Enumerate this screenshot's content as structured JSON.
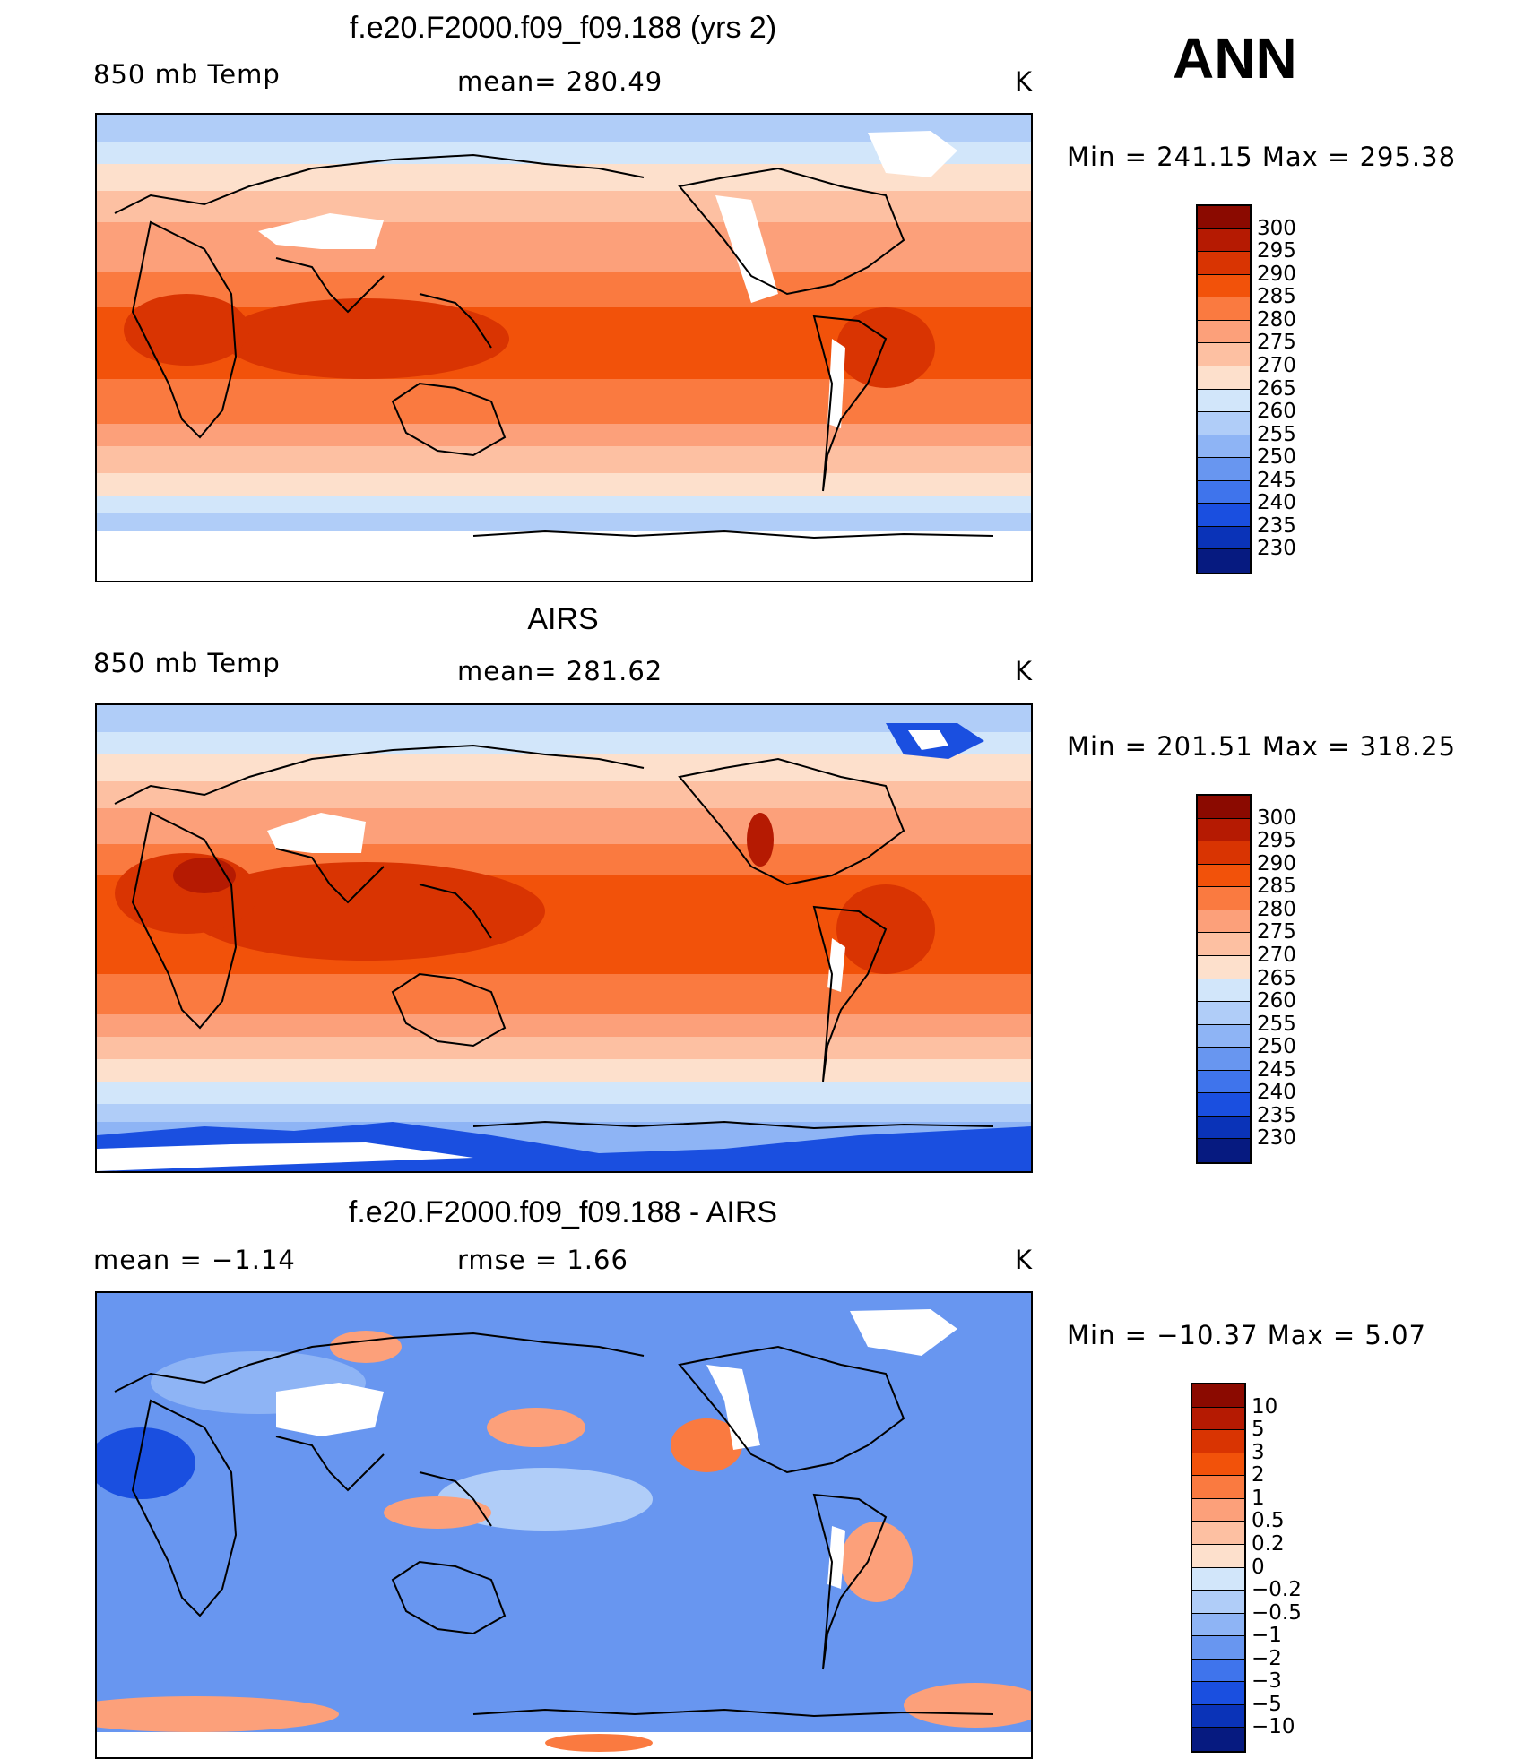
{
  "season": "ANN",
  "panels": [
    {
      "title": "f.e20.F2000.f09_f09.188 (yrs 2)",
      "left_label": "850 mb Temp",
      "center_label": "mean= 280.49",
      "units": "K",
      "min_max": "Min = 241.15 Max = 295.38",
      "kind": "model"
    },
    {
      "title": "AIRS",
      "left_label": "850 mb Temp",
      "center_label": "mean= 281.62",
      "units": "K",
      "min_max": "Min = 201.51 Max = 318.25",
      "kind": "obs"
    },
    {
      "title": "f.e20.F2000.f09_f09.188 - AIRS",
      "left_label": "mean =   −1.14",
      "center_label": "rmse =    1.66",
      "units": "K",
      "min_max": "Min = −10.37 Max =    5.07",
      "kind": "diff"
    }
  ],
  "colorbar_abs": {
    "labels": [
      "300",
      "295",
      "290",
      "285",
      "280",
      "275",
      "270",
      "265",
      "260",
      "255",
      "250",
      "245",
      "240",
      "235",
      "230"
    ],
    "colors": [
      "#8b0a00",
      "#b51a02",
      "#d93402",
      "#f2520a",
      "#fa7a40",
      "#fca07a",
      "#fdc0a2",
      "#fde0cc",
      "#d2e6fa",
      "#b0cdf8",
      "#8eb4f5",
      "#6896f0",
      "#3f74ec",
      "#1a4fe0",
      "#0a33b8",
      "#061a80"
    ]
  },
  "colorbar_diff": {
    "labels": [
      "10",
      "5",
      "3",
      "2",
      "1",
      "0.5",
      "0.2",
      "0",
      "−0.2",
      "−0.5",
      "−1",
      "−2",
      "−3",
      "−5",
      "−10"
    ],
    "colors": [
      "#8b0a00",
      "#b51a02",
      "#d93402",
      "#f2520a",
      "#fa7a40",
      "#fca07a",
      "#fdc0a2",
      "#fde0cc",
      "#d2e6fa",
      "#b0cdf8",
      "#8eb4f5",
      "#6896f0",
      "#3f74ec",
      "#1a4fe0",
      "#0a33b8",
      "#061a80"
    ]
  },
  "chart_data": [
    {
      "type": "heatmap",
      "title": "f.e20.F2000.f09_f09.188 (yrs 2)",
      "variable": "850 mb Temp",
      "units": "K",
      "mean": 280.49,
      "min": 241.15,
      "max": 295.38,
      "contour_levels": [
        230,
        235,
        240,
        245,
        250,
        255,
        260,
        265,
        270,
        275,
        280,
        285,
        290,
        295,
        300
      ]
    },
    {
      "type": "heatmap",
      "title": "AIRS",
      "variable": "850 mb Temp",
      "units": "K",
      "mean": 281.62,
      "min": 201.51,
      "max": 318.25,
      "contour_levels": [
        230,
        235,
        240,
        245,
        250,
        255,
        260,
        265,
        270,
        275,
        280,
        285,
        290,
        295,
        300
      ]
    },
    {
      "type": "heatmap",
      "title": "f.e20.F2000.f09_f09.188 - AIRS",
      "units": "K",
      "mean": -1.14,
      "rmse": 1.66,
      "min": -10.37,
      "max": 5.07,
      "contour_levels": [
        -10,
        -5,
        -3,
        -2,
        -1,
        -0.5,
        -0.2,
        0,
        0.2,
        0.5,
        1,
        2,
        3,
        5,
        10
      ]
    }
  ]
}
